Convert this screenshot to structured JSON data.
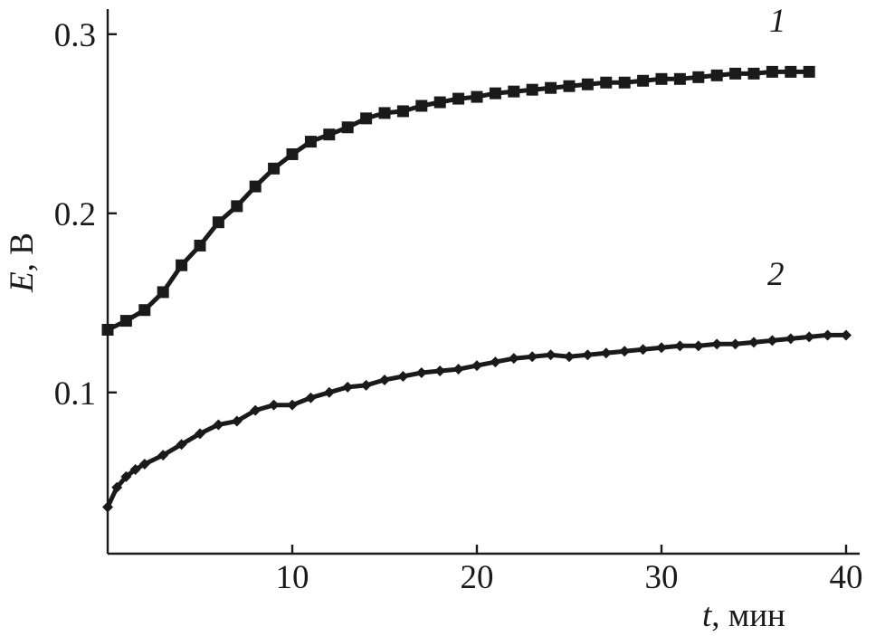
{
  "chart_data": {
    "type": "line",
    "title": "",
    "xlabel": {
      "symbol": "t",
      "unit": ", мин"
    },
    "ylabel": {
      "symbol": "E",
      "unit": ", В"
    },
    "xlim": [
      0,
      42
    ],
    "ylim": [
      0.01,
      0.31
    ],
    "xticks": [
      10,
      20,
      30,
      40
    ],
    "xtick_labels": [
      "10",
      "20",
      "30",
      "40"
    ],
    "yticks": [
      0.1,
      0.2,
      0.3
    ],
    "ytick_labels": [
      "0.1",
      "0.2",
      "0.3"
    ],
    "grid": false,
    "series": [
      {
        "name": "1",
        "marker": "square",
        "color": "#1a1a1a",
        "x": [
          0,
          1,
          2,
          3,
          4,
          5,
          6,
          7,
          8,
          9,
          10,
          11,
          12,
          13,
          14,
          15,
          16,
          17,
          18,
          19,
          20,
          21,
          22,
          23,
          24,
          25,
          26,
          27,
          28,
          29,
          30,
          31,
          32,
          33,
          34,
          35,
          36,
          37,
          38
        ],
        "y": [
          0.135,
          0.14,
          0.146,
          0.156,
          0.171,
          0.182,
          0.195,
          0.204,
          0.215,
          0.225,
          0.233,
          0.24,
          0.244,
          0.248,
          0.253,
          0.256,
          0.257,
          0.26,
          0.262,
          0.264,
          0.265,
          0.267,
          0.268,
          0.269,
          0.27,
          0.271,
          0.272,
          0.273,
          0.273,
          0.274,
          0.275,
          0.275,
          0.276,
          0.277,
          0.278,
          0.278,
          0.279,
          0.279,
          0.279
        ]
      },
      {
        "name": "2",
        "marker": "diamond",
        "color": "#1a1a1a",
        "x": [
          0,
          0.5,
          1,
          1.5,
          2,
          3,
          4,
          5,
          6,
          7,
          8,
          9,
          10,
          11,
          12,
          13,
          14,
          15,
          16,
          17,
          18,
          19,
          20,
          21,
          22,
          23,
          24,
          25,
          26,
          27,
          28,
          29,
          30,
          31,
          32,
          33,
          34,
          35,
          36,
          37,
          38,
          39,
          40
        ],
        "y": [
          0.036,
          0.047,
          0.053,
          0.057,
          0.06,
          0.065,
          0.071,
          0.077,
          0.082,
          0.084,
          0.09,
          0.093,
          0.093,
          0.097,
          0.1,
          0.103,
          0.104,
          0.107,
          0.109,
          0.111,
          0.112,
          0.113,
          0.115,
          0.117,
          0.119,
          0.12,
          0.121,
          0.12,
          0.121,
          0.122,
          0.123,
          0.124,
          0.125,
          0.126,
          0.126,
          0.127,
          0.127,
          0.128,
          0.129,
          0.13,
          0.131,
          0.132,
          0.132
        ]
      }
    ]
  }
}
